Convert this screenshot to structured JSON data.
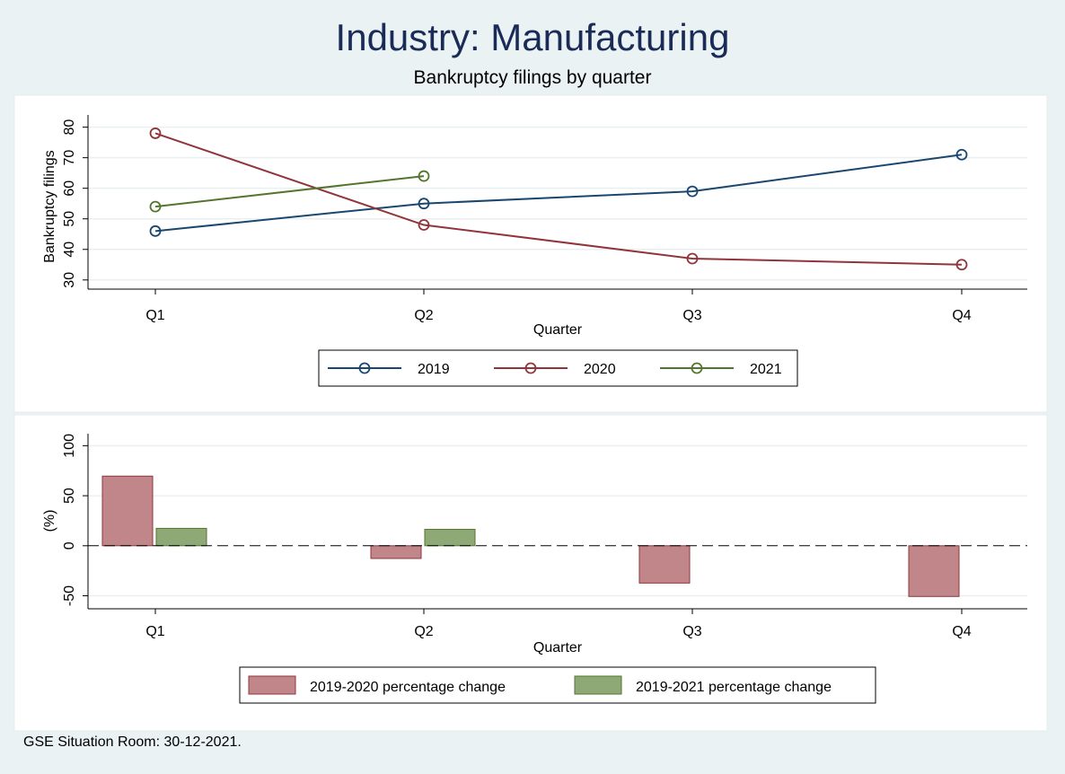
{
  "title": "Industry: Manufacturing",
  "subtitle": "Bankruptcy filings by quarter",
  "note": "GSE Situation Room: 30-12-2021.",
  "chart_data": [
    {
      "type": "line",
      "categories": [
        "Q1",
        "Q2",
        "Q3",
        "Q4"
      ],
      "xlabel": "Quarter",
      "ylabel": "Bankruptcy filings",
      "yticks": [
        30,
        40,
        50,
        60,
        70,
        80
      ],
      "ylim": [
        27,
        84
      ],
      "grid": true,
      "legend_position": "bottom",
      "series": [
        {
          "name": "2019",
          "color": "#1a476f",
          "values": [
            46,
            55,
            59,
            71
          ]
        },
        {
          "name": "2020",
          "color": "#90353b",
          "values": [
            78,
            48,
            37,
            35
          ]
        },
        {
          "name": "2021",
          "color": "#55752f",
          "values": [
            54,
            64,
            null,
            null
          ]
        }
      ]
    },
    {
      "type": "bar",
      "categories": [
        "Q1",
        "Q2",
        "Q3",
        "Q4"
      ],
      "xlabel": "Quarter",
      "ylabel": "(%)",
      "yticks": [
        -50,
        0,
        50,
        100
      ],
      "ylim": [
        -63,
        112
      ],
      "grid": true,
      "legend_position": "bottom",
      "reference_line": 0,
      "series": [
        {
          "name": "2019-2020 percentage change",
          "color": "#c1868a",
          "stroke": "#90353b",
          "values": [
            69.6,
            -12.7,
            -37.3,
            -50.7
          ]
        },
        {
          "name": "2019-2021 percentage change",
          "color": "#8ea876",
          "stroke": "#55752f",
          "values": [
            17.4,
            16.4,
            null,
            null
          ]
        }
      ]
    }
  ]
}
